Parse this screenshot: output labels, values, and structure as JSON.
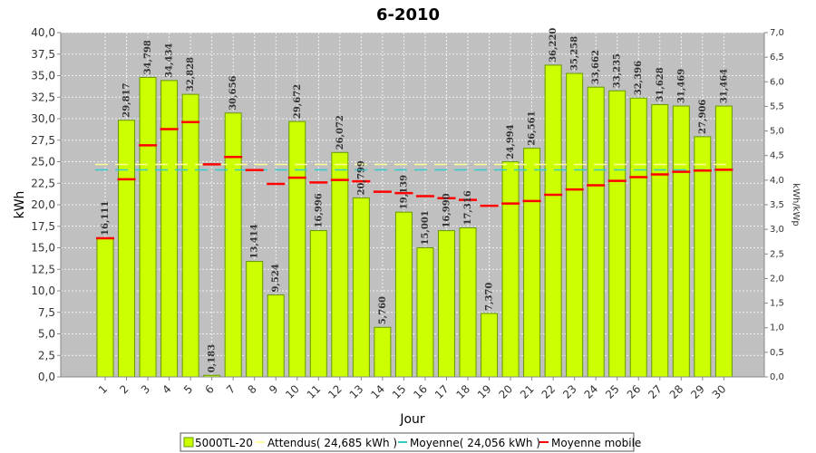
{
  "chart_data": {
    "type": "bar",
    "title": "6-2010",
    "xlabel": "Jour",
    "ylabel": "kWh",
    "y2label": "kWh/kWp",
    "ylim": [
      0,
      40
    ],
    "y2lim": [
      0,
      7
    ],
    "grid": true,
    "legend_position": "bottom",
    "colors": {
      "bar": "#ccff00",
      "bar_border": "#669900",
      "attendus": "#ffff99",
      "moyenne": "#33cccc",
      "moyenne_mobile": "#ff0000",
      "plot_bg": "#c0c0c0"
    },
    "yticks": [
      "0,0",
      "2,5",
      "5,0",
      "7,5",
      "10,0",
      "12,5",
      "15,0",
      "17,5",
      "20,0",
      "22,5",
      "25,0",
      "27,5",
      "30,0",
      "32,5",
      "35,0",
      "37,5",
      "40,0"
    ],
    "y2ticks": [
      "0,0",
      "0,5",
      "1,0",
      "1,5",
      "2,0",
      "2,5",
      "3,0",
      "3,5",
      "4,0",
      "4,5",
      "5,0",
      "5,5",
      "6,0",
      "6,5",
      "7,0"
    ],
    "categories": [
      "1",
      "2",
      "3",
      "4",
      "5",
      "6",
      "7",
      "8",
      "9",
      "10",
      "11",
      "12",
      "13",
      "14",
      "15",
      "16",
      "17",
      "18",
      "19",
      "20",
      "21",
      "22",
      "23",
      "24",
      "25",
      "26",
      "27",
      "28",
      "29",
      "30"
    ],
    "series": [
      {
        "name": "5000TL-20",
        "values": [
          16.111,
          29.817,
          34.798,
          34.434,
          32.828,
          0.183,
          30.656,
          13.414,
          9.524,
          29.672,
          16.996,
          26.072,
          20.799,
          5.76,
          19.139,
          15.001,
          16.99,
          17.316,
          7.37,
          24.994,
          26.561,
          36.22,
          35.258,
          33.662,
          33.235,
          32.396,
          31.628,
          31.469,
          27.906,
          31.464
        ],
        "labels": [
          "16,111",
          "29,817",
          "34,798",
          "34,434",
          "32,828",
          "0,183",
          "30,656",
          "13,414",
          "9,524",
          "29,672",
          "16,996",
          "26,072",
          "20,799",
          "5,760",
          "19,139",
          "15,001",
          "16,990",
          "17,316",
          "7,370",
          "24,994",
          "26,561",
          "36,220",
          "35,258",
          "33,662",
          "33,235",
          "32,396",
          "31,628",
          "31,469",
          "27,906",
          "31,464"
        ]
      },
      {
        "name": "Moyenne mobile",
        "values": [
          16.1,
          22.96,
          26.91,
          28.79,
          29.6,
          24.7,
          25.55,
          24.03,
          22.42,
          23.15,
          22.59,
          22.88,
          22.72,
          21.51,
          21.35,
          21.0,
          20.76,
          20.57,
          19.88,
          20.14,
          20.44,
          21.16,
          21.77,
          22.26,
          22.78,
          23.21,
          23.52,
          23.83,
          23.97,
          24.06
        ]
      }
    ],
    "attendus_value": 24.685,
    "moyenne_value": 24.056,
    "legend": [
      {
        "key": "bars",
        "label": "5000TL-20"
      },
      {
        "key": "attendus",
        "label": "Attendus( 24,685 kWh )"
      },
      {
        "key": "moyenne",
        "label": "Moyenne( 24,056 kWh )"
      },
      {
        "key": "mobile",
        "label": "Moyenne mobile"
      }
    ]
  }
}
